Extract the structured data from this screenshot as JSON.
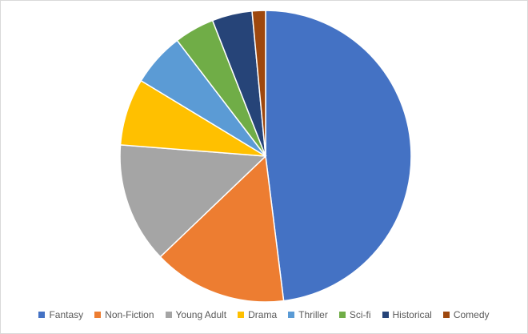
{
  "chart_data": {
    "type": "pie",
    "categories": [
      "Fantasy",
      "Non-Fiction",
      "Young Adult",
      "Drama",
      "Thriller",
      "Sci-fi",
      "Historical",
      "Comedy"
    ],
    "values": [
      48.5,
      15.0,
      13.5,
      7.5,
      6.0,
      4.5,
      4.5,
      1.5
    ],
    "colors": [
      "#4472C4",
      "#ED7D31",
      "#A5A5A5",
      "#FFC000",
      "#5B9BD5",
      "#70AD47",
      "#264478",
      "#9E480E"
    ],
    "start_angle_deg": 0,
    "direction": "clockwise",
    "legend_position": "bottom",
    "title": ""
  }
}
